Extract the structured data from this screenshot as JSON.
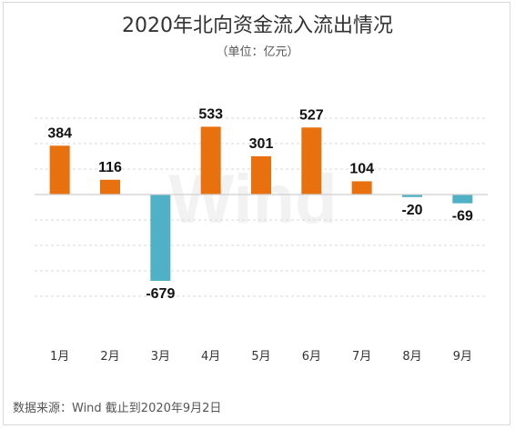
{
  "title": "2020年北向资金流入流出情况",
  "unit": "（单位：亿元）",
  "source": "数据来源：Wind 截止到2020年9月2日",
  "watermark": "Wind",
  "colors": {
    "positive": "#e8700f",
    "negative": "#4fb0c6",
    "grid": "#d9d9d9"
  },
  "chart_data": {
    "type": "bar",
    "categories": [
      "1月",
      "2月",
      "3月",
      "4月",
      "5月",
      "6月",
      "7月",
      "8月",
      "9月"
    ],
    "values": [
      384,
      116,
      -679,
      533,
      301,
      527,
      104,
      -20,
      -69
    ],
    "value_labels": [
      "384",
      "116",
      "-679",
      "533",
      "301",
      "527",
      "104",
      "-20",
      "-69"
    ],
    "ylim": [
      -800,
      600
    ],
    "grid": true,
    "legend": "none"
  }
}
